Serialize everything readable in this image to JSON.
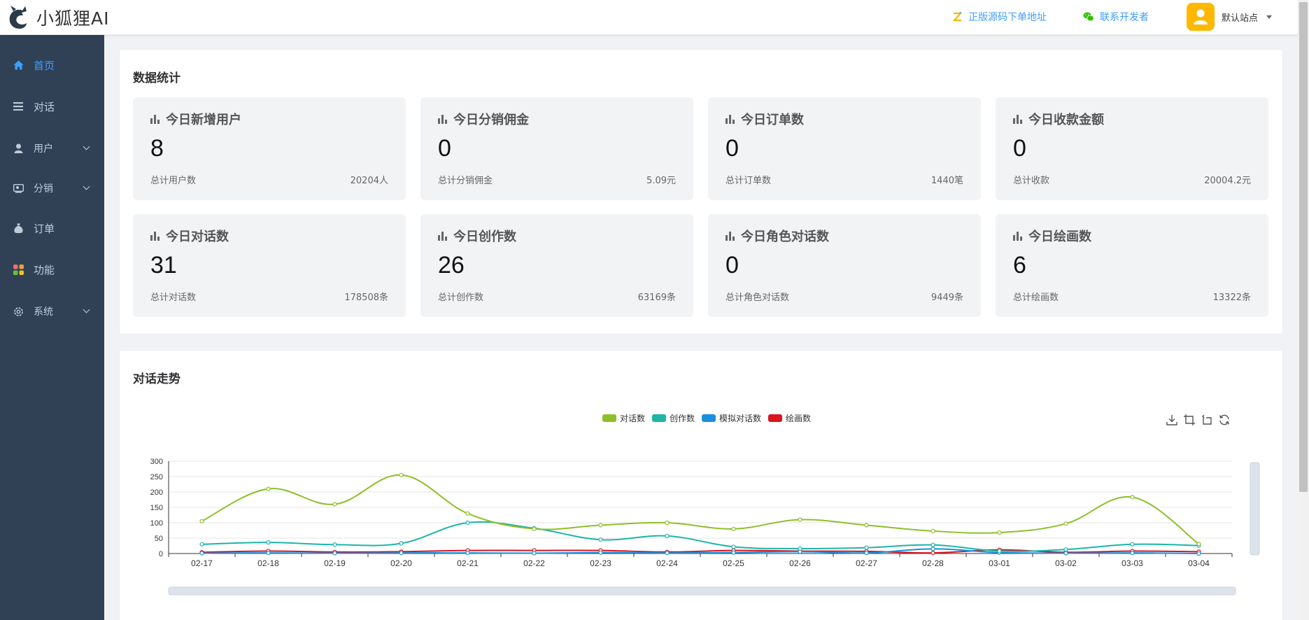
{
  "header": {
    "logo_text": "小狐狸AI",
    "source_link": "正版源码下单地址",
    "developer_link": "联系开发者",
    "user_name": "默认站点"
  },
  "sidebar": {
    "items": [
      {
        "label": "首页",
        "icon": "home-icon",
        "active": true
      },
      {
        "label": "对话",
        "icon": "list-icon"
      },
      {
        "label": "用户",
        "icon": "user-icon",
        "expandable": true
      },
      {
        "label": "分销",
        "icon": "distribution-icon",
        "expandable": true
      },
      {
        "label": "订单",
        "icon": "money-bag-icon"
      },
      {
        "label": "功能",
        "icon": "apps-icon"
      },
      {
        "label": "系统",
        "icon": "gear-icon",
        "expandable": true
      }
    ]
  },
  "stats": {
    "title": "数据统计",
    "cards": [
      {
        "title": "今日新增用户",
        "value": "8",
        "sub_label": "总计用户数",
        "total": "20204人"
      },
      {
        "title": "今日分销佣金",
        "value": "0",
        "sub_label": "总计分销佣金",
        "total": "5.09元"
      },
      {
        "title": "今日订单数",
        "value": "0",
        "sub_label": "总计订单数",
        "total": "1440笔"
      },
      {
        "title": "今日收款金额",
        "value": "0",
        "sub_label": "总计收款",
        "total": "20004.2元"
      },
      {
        "title": "今日对话数",
        "value": "31",
        "sub_label": "总计对话数",
        "total": "178508条"
      },
      {
        "title": "今日创作数",
        "value": "26",
        "sub_label": "总计创作数",
        "total": "63169条"
      },
      {
        "title": "今日角色对话数",
        "value": "0",
        "sub_label": "总计角色对话数",
        "total": "9449条"
      },
      {
        "title": "今日绘画数",
        "value": "6",
        "sub_label": "总计绘画数",
        "total": "13322条"
      }
    ]
  },
  "trend": {
    "title": "对话走势",
    "tools": [
      "download-icon",
      "zoom-icon",
      "zoom-reset-icon",
      "refresh-icon"
    ]
  },
  "chart_data": {
    "type": "line",
    "title": "",
    "categories": [
      "02-17",
      "02-18",
      "02-19",
      "02-20",
      "02-21",
      "02-22",
      "02-23",
      "02-24",
      "02-25",
      "02-26",
      "02-27",
      "02-28",
      "03-01",
      "03-02",
      "03-03",
      "03-04"
    ],
    "ylim": [
      0,
      300
    ],
    "yticks": [
      0,
      50,
      100,
      150,
      200,
      250,
      300
    ],
    "grid": true,
    "legend_position": "top",
    "series": [
      {
        "name": "对话数",
        "color": "#8fbf2a",
        "values": [
          105,
          210,
          160,
          255,
          130,
          80,
          92,
          100,
          80,
          110,
          92,
          73,
          68,
          97,
          183,
          31
        ]
      },
      {
        "name": "创作数",
        "color": "#1cb5a8",
        "values": [
          30,
          36,
          29,
          33,
          100,
          82,
          45,
          57,
          22,
          16,
          19,
          28,
          8,
          13,
          30,
          26
        ]
      },
      {
        "name": "模拟对话数",
        "color": "#1890e0",
        "values": [
          1,
          2,
          1,
          2,
          2,
          1,
          3,
          2,
          3,
          6,
          2,
          15,
          3,
          1,
          2,
          0
        ]
      },
      {
        "name": "绘画数",
        "color": "#d9141e",
        "values": [
          4,
          8,
          5,
          6,
          10,
          10,
          10,
          5,
          10,
          8,
          7,
          2,
          12,
          4,
          8,
          6
        ]
      }
    ]
  }
}
